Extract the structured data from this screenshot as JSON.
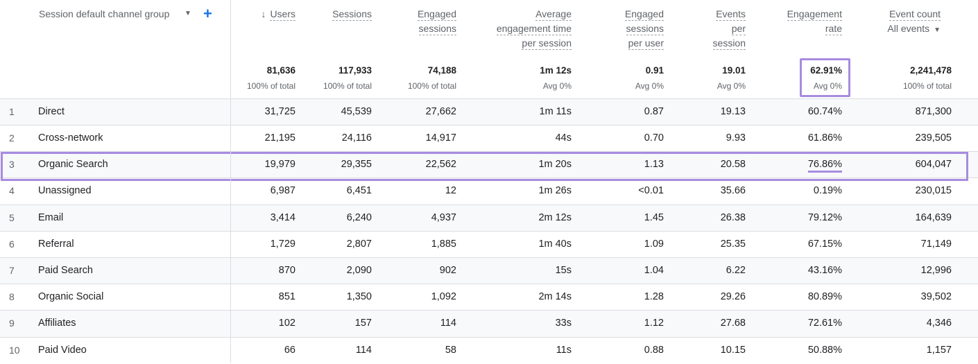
{
  "dimension": {
    "label": "Session default channel group"
  },
  "metric_headers": [
    {
      "lines": [
        "Users"
      ],
      "sorted": true
    },
    {
      "lines": [
        "Sessions"
      ]
    },
    {
      "lines": [
        "Engaged",
        "sessions"
      ]
    },
    {
      "lines": [
        "Average",
        "engagement time",
        "per session"
      ]
    },
    {
      "lines": [
        "Engaged",
        "sessions",
        "per user"
      ]
    },
    {
      "lines": [
        "Events",
        "per",
        "session"
      ]
    },
    {
      "lines": [
        "Engagement",
        "rate"
      ]
    },
    {
      "lines": [
        "Event count"
      ],
      "sub": "All events"
    }
  ],
  "totals": [
    {
      "value": "81,636",
      "sub": "100% of total"
    },
    {
      "value": "117,933",
      "sub": "100% of total"
    },
    {
      "value": "74,188",
      "sub": "100% of total"
    },
    {
      "value": "1m 12s",
      "sub": "Avg 0%"
    },
    {
      "value": "0.91",
      "sub": "Avg 0%"
    },
    {
      "value": "19.01",
      "sub": "Avg 0%"
    },
    {
      "value": "62.91%",
      "sub": "Avg 0%"
    },
    {
      "value": "2,241,478",
      "sub": "100% of total"
    }
  ],
  "rows": [
    {
      "idx": "1",
      "name": "Direct",
      "values": [
        "31,725",
        "45,539",
        "27,662",
        "1m 11s",
        "0.87",
        "19.13",
        "60.74%",
        "871,300"
      ]
    },
    {
      "idx": "2",
      "name": "Cross-network",
      "values": [
        "21,195",
        "24,116",
        "14,917",
        "44s",
        "0.70",
        "9.93",
        "61.86%",
        "239,505"
      ]
    },
    {
      "idx": "3",
      "name": "Organic Search",
      "values": [
        "19,979",
        "29,355",
        "22,562",
        "1m 20s",
        "1.13",
        "20.58",
        "76.86%",
        "604,047"
      ]
    },
    {
      "idx": "4",
      "name": "Unassigned",
      "values": [
        "6,987",
        "6,451",
        "12",
        "1m 26s",
        "<0.01",
        "35.66",
        "0.19%",
        "230,015"
      ]
    },
    {
      "idx": "5",
      "name": "Email",
      "values": [
        "3,414",
        "6,240",
        "4,937",
        "2m 12s",
        "1.45",
        "26.38",
        "79.12%",
        "164,639"
      ]
    },
    {
      "idx": "6",
      "name": "Referral",
      "values": [
        "1,729",
        "2,807",
        "1,885",
        "1m 40s",
        "1.09",
        "25.35",
        "67.15%",
        "71,149"
      ]
    },
    {
      "idx": "7",
      "name": "Paid Search",
      "values": [
        "870",
        "2,090",
        "902",
        "15s",
        "1.04",
        "6.22",
        "43.16%",
        "12,996"
      ]
    },
    {
      "idx": "8",
      "name": "Organic Social",
      "values": [
        "851",
        "1,350",
        "1,092",
        "2m 14s",
        "1.28",
        "29.26",
        "80.89%",
        "39,502"
      ]
    },
    {
      "idx": "9",
      "name": "Affiliates",
      "values": [
        "102",
        "157",
        "114",
        "33s",
        "1.12",
        "27.68",
        "72.61%",
        "4,346"
      ]
    },
    {
      "idx": "10",
      "name": "Paid Video",
      "values": [
        "66",
        "114",
        "58",
        "11s",
        "0.88",
        "10.15",
        "50.88%",
        "1,157"
      ]
    }
  ],
  "highlight_color": "#a78be0",
  "accent_color": "#1a73e8",
  "icons": {
    "sort": "arrow-down-icon",
    "dropdown": "caret-down-icon",
    "add": "plus-icon"
  }
}
